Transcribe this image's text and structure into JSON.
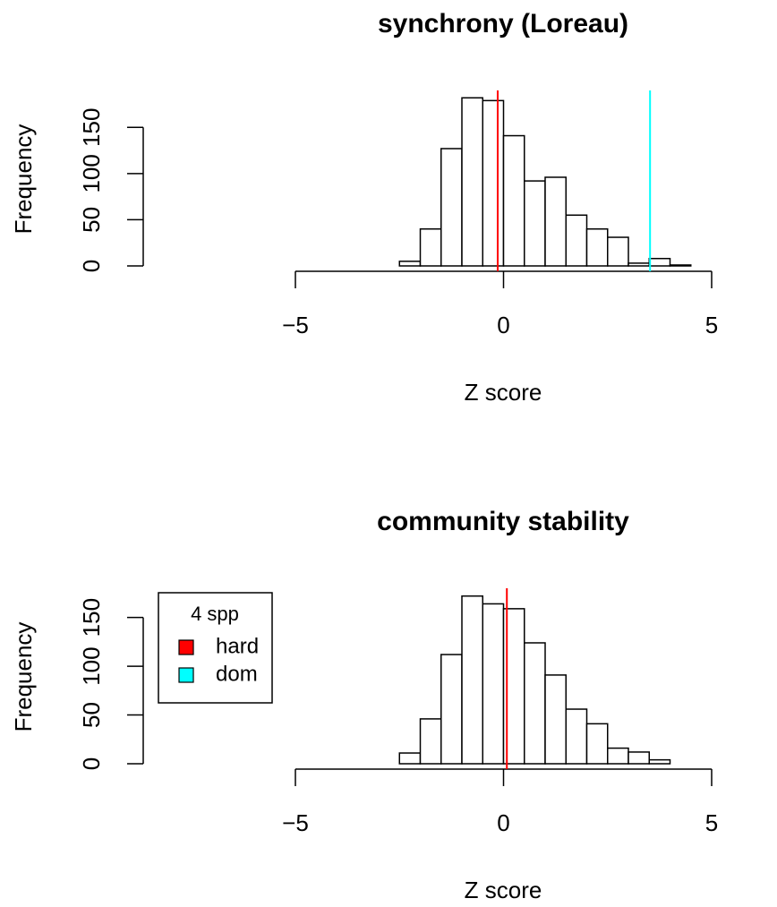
{
  "chart_data": [
    {
      "type": "histogram",
      "title": "synchrony (Loreau)",
      "xlabel": "Z score",
      "ylabel": "Frequency",
      "bins": [
        -2.5,
        -2,
        -1.5,
        -1,
        -0.5,
        0,
        0.5,
        1,
        1.5,
        2,
        2.5,
        3,
        3.5,
        4,
        4.5
      ],
      "values": [
        5,
        40,
        127,
        182,
        179,
        141,
        92,
        96,
        55,
        40,
        31,
        3,
        8,
        1
      ],
      "color": "#ffffff",
      "xlim": [
        -5,
        5
      ],
      "xticks": [
        {
          "value": -5,
          "label": "−5"
        },
        0,
        5
      ],
      "ylim": [
        0,
        190
      ],
      "yticks": [
        0,
        50,
        100,
        150
      ],
      "vlines": [
        {
          "x": -0.14,
          "color": "#ff0000"
        },
        {
          "x": 3.52,
          "color": "#00ffff"
        }
      ]
    },
    {
      "type": "histogram",
      "title": "community stability",
      "xlabel": "Z score",
      "ylabel": "Frequency",
      "bins": [
        -2.5,
        -2,
        -1.5,
        -1,
        -0.5,
        0,
        0.5,
        1,
        1.5,
        2,
        2.5,
        3,
        3.5,
        4
      ],
      "values": [
        11,
        46,
        112,
        172,
        164,
        159,
        124,
        91,
        56,
        41,
        16,
        12,
        4
      ],
      "color": "#ffffff",
      "xlim": [
        -5,
        5
      ],
      "xticks": [
        {
          "value": -5,
          "label": "−5"
        },
        0,
        5
      ],
      "ylim": [
        0,
        180
      ],
      "yticks": [
        0,
        50,
        100,
        150
      ],
      "vlines": [
        {
          "x": 0.08,
          "color": "#ff0000"
        }
      ],
      "legend": {
        "title": "4 spp",
        "entries": [
          {
            "name": "hard",
            "color": "#ff0000"
          },
          {
            "name": "dom",
            "color": "#00ffff"
          }
        ]
      }
    }
  ]
}
